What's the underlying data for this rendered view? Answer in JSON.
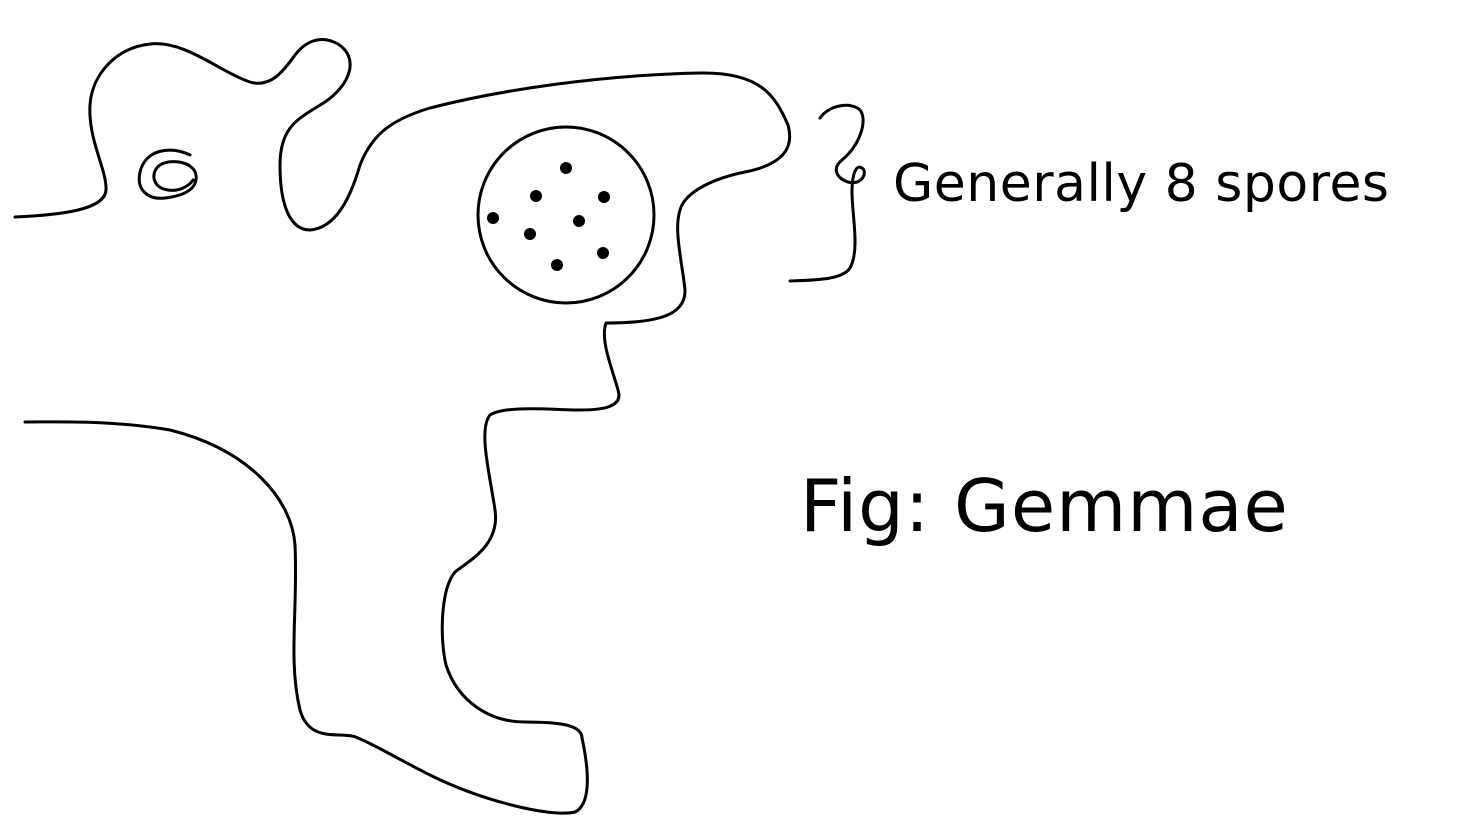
{
  "annotation": {
    "text": "Generally 8 spores"
  },
  "caption": {
    "text": "Fig: Gemmae"
  },
  "diagram": {
    "stroke_color": "#000000",
    "background_color": "#ffffff",
    "spore_count": 8
  }
}
